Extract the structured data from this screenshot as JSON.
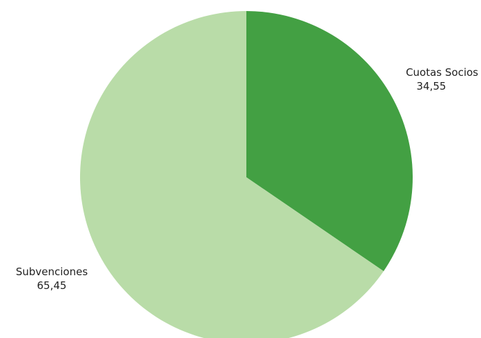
{
  "chart_data": {
    "type": "pie",
    "title": "",
    "slices": [
      {
        "label": "Cuotas Socios",
        "value_label": "34,55",
        "value": 34.55,
        "color": "#43a043"
      },
      {
        "label": "Subvenciones",
        "value_label": "65,45",
        "value": 65.45,
        "color": "#b9dca8"
      }
    ],
    "start_angle": "12 o'clock",
    "direction": "clockwise",
    "legend": "none",
    "labels": "outside"
  }
}
